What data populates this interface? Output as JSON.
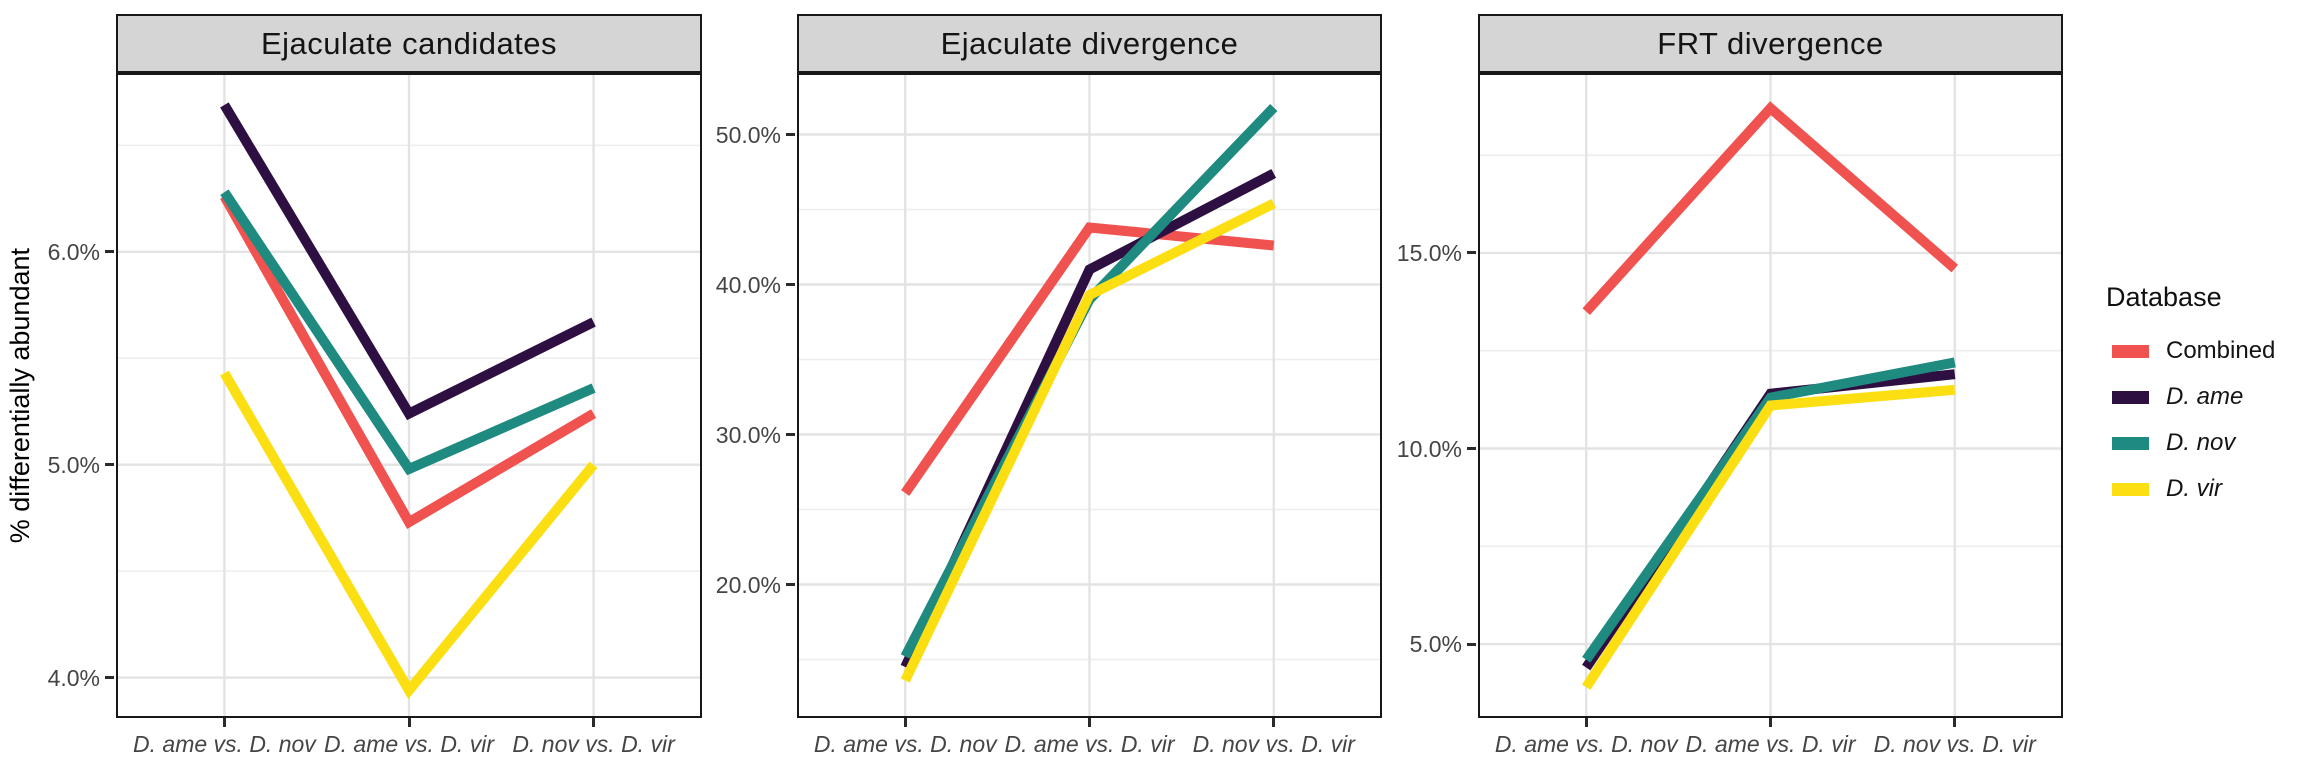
{
  "chart_data": {
    "type": "line",
    "figure": "three-panel faceted line chart",
    "y_axis_title": "% differentially abundant",
    "categories": [
      "D. ame vs. D. nov",
      "D. ame vs. D. vir",
      "D. nov vs. D. vir"
    ],
    "series_order": [
      "Combined",
      "D. ame",
      "D. nov",
      "D. vir"
    ],
    "colors": {
      "Combined": "#F0524F",
      "D. ame": "#2E0F41",
      "D. nov": "#1F8A80",
      "D. vir": "#FBDF13"
    },
    "grid": {
      "major_color": "#E3E3E3",
      "minor_color": "#EDEDED"
    },
    "legend": {
      "title": "Database",
      "position": "right",
      "entries": [
        {
          "label": "Combined",
          "italic": false,
          "color": "#F0524F"
        },
        {
          "label": "D. ame",
          "italic": true,
          "color": "#2E0F41"
        },
        {
          "label": "D. nov",
          "italic": true,
          "color": "#1F8A80"
        },
        {
          "label": "D. vir",
          "italic": true,
          "color": "#FBDF13"
        }
      ]
    },
    "panels": [
      {
        "title": "Ejaculate candidates",
        "ylim": [
          3.81,
          6.84
        ],
        "yticks": [
          {
            "v": 4.0,
            "label": "4.0%"
          },
          {
            "v": 5.0,
            "label": "5.0%"
          },
          {
            "v": 6.0,
            "label": "6.0%"
          }
        ],
        "yminor": [
          4.5,
          5.5,
          6.5
        ],
        "series": {
          "Combined": [
            6.26,
            4.73,
            5.24
          ],
          "D. ame": [
            6.69,
            5.24,
            5.67
          ],
          "D. nov": [
            6.28,
            4.98,
            5.36
          ],
          "D. vir": [
            5.43,
            3.94,
            5.0
          ]
        }
      },
      {
        "title": "Ejaculate divergence",
        "ylim": [
          11.1,
          54.1
        ],
        "yticks": [
          {
            "v": 20.0,
            "label": "20.0%"
          },
          {
            "v": 30.0,
            "label": "30.0%"
          },
          {
            "v": 40.0,
            "label": "40.0%"
          },
          {
            "v": 50.0,
            "label": "50.0%"
          }
        ],
        "yminor": [
          15.0,
          25.0,
          35.0,
          45.0
        ],
        "series": {
          "Combined": [
            26.1,
            43.8,
            42.6
          ],
          "D. ame": [
            14.5,
            41.0,
            47.4
          ],
          "D. nov": [
            15.2,
            39.0,
            51.8
          ],
          "D. vir": [
            13.6,
            39.3,
            45.4
          ]
        }
      },
      {
        "title": "FRT divergence",
        "ylim": [
          3.11,
          19.6
        ],
        "yticks": [
          {
            "v": 5.0,
            "label": "5.0%"
          },
          {
            "v": 10.0,
            "label": "10.0%"
          },
          {
            "v": 15.0,
            "label": "15.0%"
          }
        ],
        "yminor": [
          7.5,
          12.5,
          17.5
        ],
        "series": {
          "Combined": [
            13.5,
            18.7,
            14.6
          ],
          "D. ame": [
            4.4,
            11.4,
            11.9
          ],
          "D. nov": [
            4.6,
            11.3,
            12.2
          ],
          "D. vir": [
            3.9,
            11.1,
            11.5
          ]
        }
      }
    ]
  }
}
